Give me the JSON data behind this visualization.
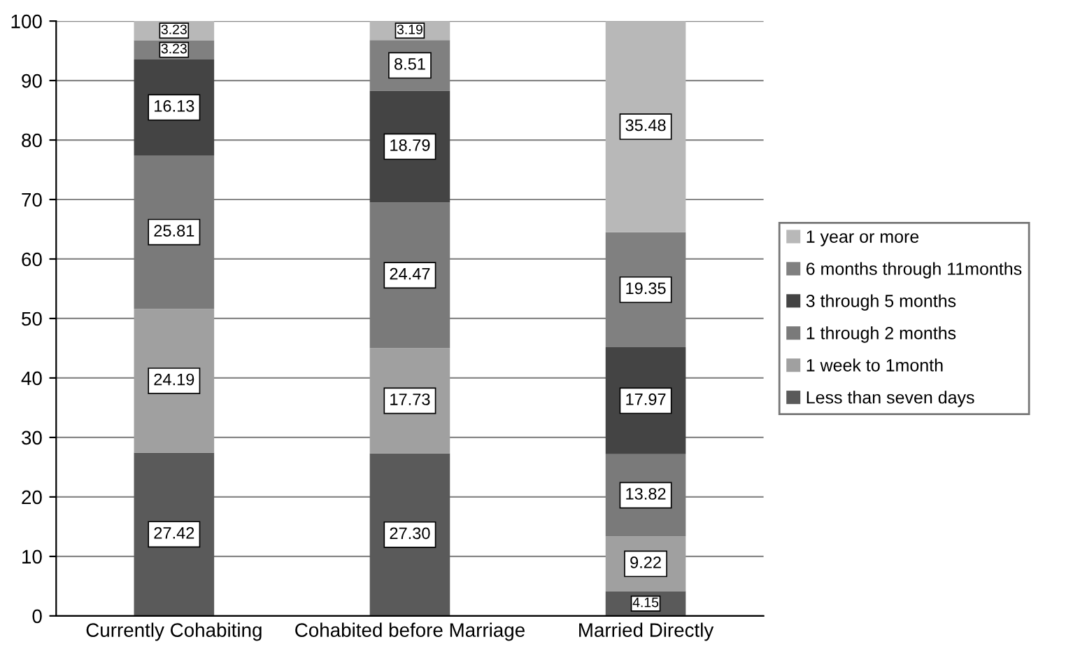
{
  "chart_data": {
    "type": "bar",
    "stacked": true,
    "categories": [
      "Currently Cohabiting",
      "Cohabited before Marriage",
      "Married Directly"
    ],
    "series": [
      {
        "name": "Less than seven days",
        "color": "#5a5a5a",
        "values": [
          27.42,
          27.3,
          4.15
        ],
        "value_labels": [
          "27.42",
          "27.30",
          "4.15"
        ]
      },
      {
        "name": "1 week to 1month",
        "color": "#a0a0a0",
        "values": [
          24.19,
          17.73,
          9.22
        ],
        "value_labels": [
          "24.19",
          "17.73",
          "9.22"
        ]
      },
      {
        "name": "1 through 2 months",
        "color": "#7a7a7a",
        "values": [
          25.81,
          24.47,
          13.82
        ],
        "value_labels": [
          "25.81",
          "24.47",
          "13.82"
        ]
      },
      {
        "name": "3 through 5 months",
        "color": "#444444",
        "values": [
          16.13,
          18.79,
          17.97
        ],
        "value_labels": [
          "16.13",
          "18.79",
          "17.97"
        ]
      },
      {
        "name": "6 months through 11months",
        "color": "#808080",
        "values": [
          3.23,
          8.51,
          19.35
        ],
        "value_labels": [
          "3.23",
          "8.51",
          "19.35"
        ]
      },
      {
        "name": "1 year or more",
        "color": "#b8b8b8",
        "values": [
          3.23,
          3.19,
          35.48
        ],
        "value_labels": [
          "3.23",
          "3.19",
          "35.48"
        ]
      }
    ],
    "ylim": [
      0,
      100
    ],
    "yticks": [
      0,
      10,
      20,
      30,
      40,
      50,
      60,
      70,
      80,
      90,
      100
    ],
    "grid": "y",
    "legend": "right"
  }
}
